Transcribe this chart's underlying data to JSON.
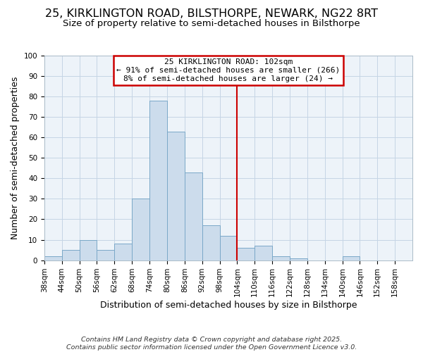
{
  "title": "25, KIRKLINGTON ROAD, BILSTHORPE, NEWARK, NG22 8RT",
  "subtitle": "Size of property relative to semi-detached houses in Bilsthorpe",
  "xlabel": "Distribution of semi-detached houses by size in Bilsthorpe",
  "ylabel": "Number of semi-detached properties",
  "bin_labels": [
    "38sqm",
    "44sqm",
    "50sqm",
    "56sqm",
    "62sqm",
    "68sqm",
    "74sqm",
    "80sqm",
    "86sqm",
    "92sqm",
    "98sqm",
    "104sqm",
    "110sqm",
    "116sqm",
    "122sqm",
    "128sqm",
    "134sqm",
    "140sqm",
    "146sqm",
    "152sqm",
    "158sqm"
  ],
  "bin_edges": [
    38,
    44,
    50,
    56,
    62,
    68,
    74,
    80,
    86,
    92,
    98,
    104,
    110,
    116,
    122,
    128,
    134,
    140,
    146,
    152,
    158,
    164
  ],
  "counts": [
    2,
    5,
    10,
    5,
    8,
    30,
    78,
    63,
    43,
    17,
    12,
    6,
    7,
    2,
    1,
    0,
    0,
    2,
    0,
    0,
    0
  ],
  "bar_color": "#ccdcec",
  "bar_edge_color": "#7aa8c8",
  "vline_x": 104,
  "vline_color": "#cc0000",
  "annotation_title": "25 KIRKLINGTON ROAD: 102sqm",
  "annotation_line1": "← 91% of semi-detached houses are smaller (266)",
  "annotation_line2": "8% of semi-detached houses are larger (24) →",
  "annotation_box_color": "#cc0000",
  "ylim": [
    0,
    100
  ],
  "yticks": [
    0,
    10,
    20,
    30,
    40,
    50,
    60,
    70,
    80,
    90,
    100
  ],
  "footer1": "Contains HM Land Registry data © Crown copyright and database right 2025.",
  "footer2": "Contains public sector information licensed under the Open Government Licence v3.0.",
  "bg_color": "#ffffff",
  "plot_bg_color": "#edf3f9",
  "grid_color": "#c5d5e5",
  "title_fontsize": 11.5,
  "subtitle_fontsize": 9.5,
  "axis_label_fontsize": 9,
  "tick_fontsize": 7.5,
  "annotation_fontsize": 8,
  "footer_fontsize": 6.8
}
